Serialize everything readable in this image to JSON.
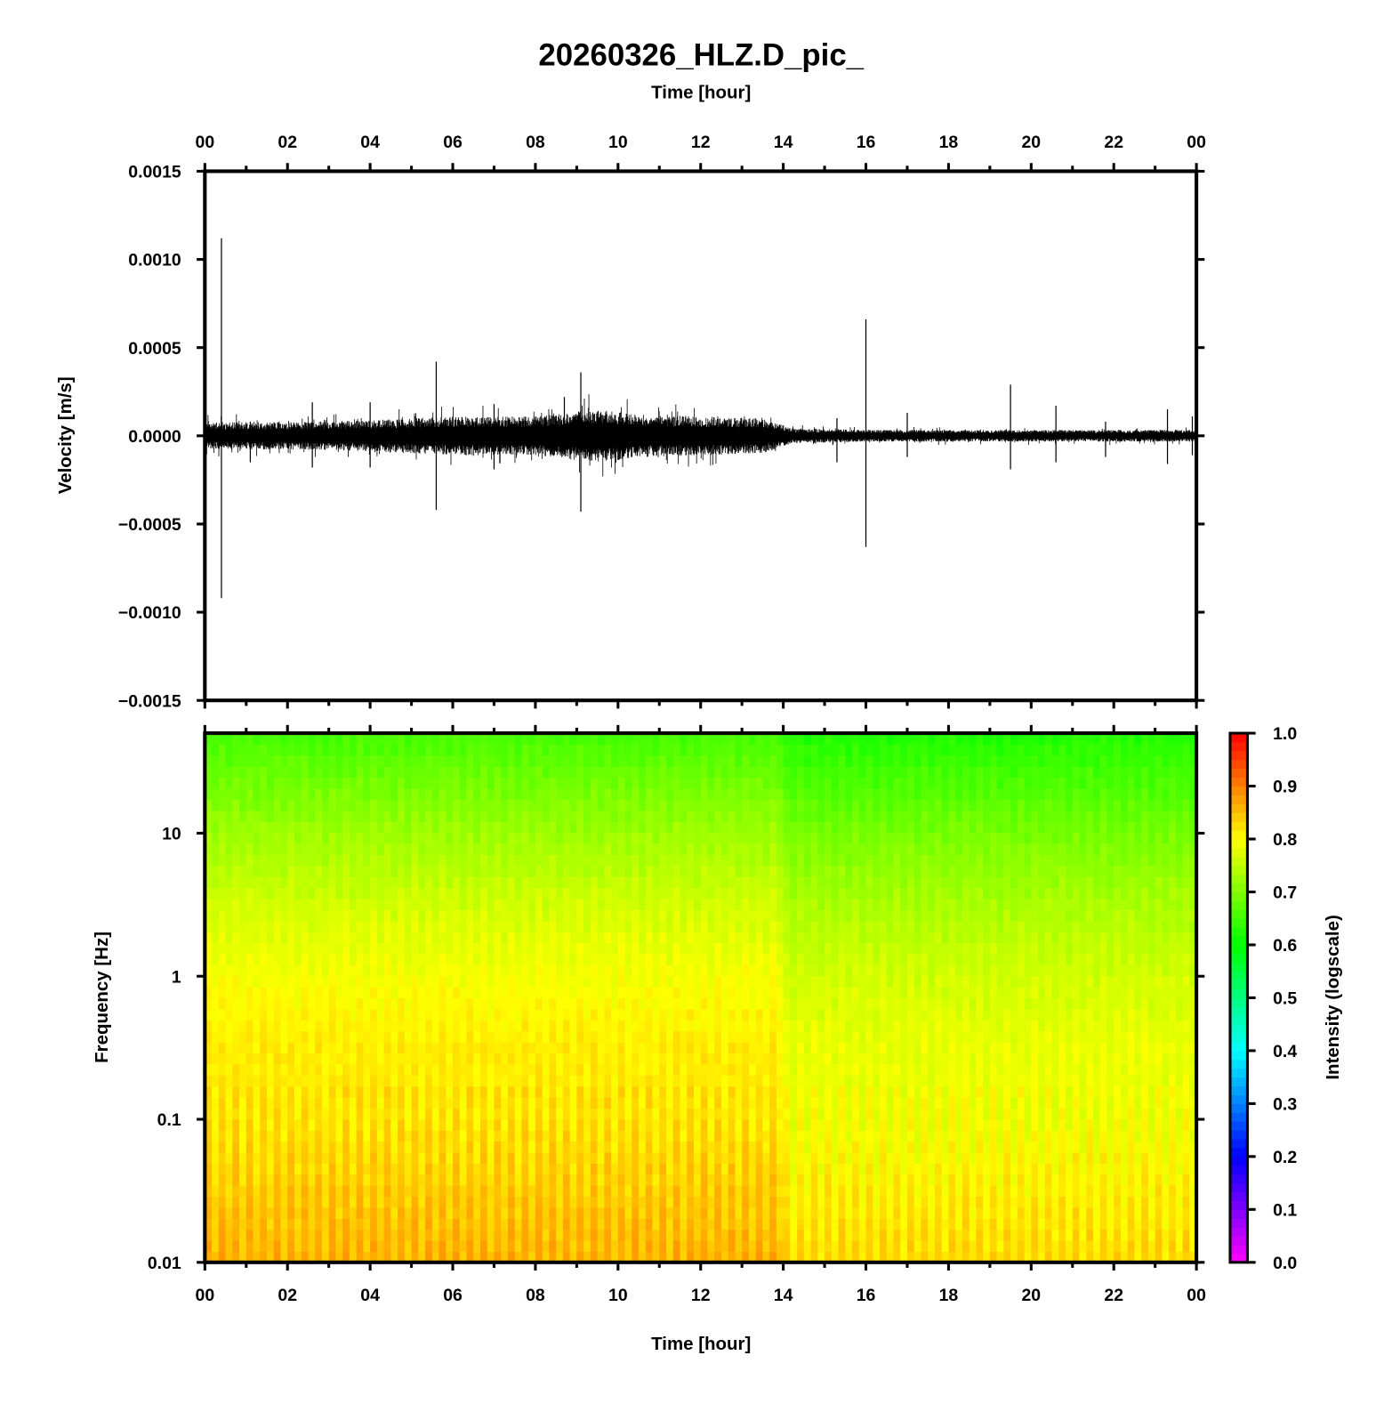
{
  "chart_data": [
    {
      "type": "line",
      "title": "20260326_HLZ.D_pic_",
      "xlabel": "Time [hour]",
      "ylabel": "Velocity [m/s]",
      "xlim": [
        0,
        24
      ],
      "ylim": [
        -0.0015,
        0.0015
      ],
      "x_tick_labels": [
        "00",
        "02",
        "04",
        "06",
        "08",
        "10",
        "12",
        "14",
        "16",
        "18",
        "20",
        "22",
        "00"
      ],
      "y_ticks": [
        0.0015,
        0.001,
        0.0005,
        0.0,
        -0.0005,
        -0.001,
        -0.0015
      ],
      "y_tick_labels": [
        "0.0015",
        "0.0010",
        "0.0005",
        "0.0000",
        "−0.0005",
        "−0.0010",
        "−0.0015"
      ],
      "noise_envelope": {
        "hours": [
          0,
          2,
          4,
          6,
          8,
          9.5,
          10.5,
          12,
          13.5,
          14.2,
          16,
          20,
          24
        ],
        "amplitude": [
          7e-05,
          7e-05,
          8e-05,
          0.0001,
          0.0001,
          0.00014,
          0.00011,
          0.0001,
          9e-05,
          4e-05,
          3e-05,
          3e-05,
          3e-05
        ]
      },
      "spikes": [
        {
          "hour": 0.4,
          "max": 0.00112,
          "min": -0.00092
        },
        {
          "hour": 1.1,
          "max": 8e-05,
          "min": -0.00015
        },
        {
          "hour": 2.6,
          "max": 0.00019,
          "min": -0.00018
        },
        {
          "hour": 4.0,
          "max": 0.00019,
          "min": -0.00018
        },
        {
          "hour": 5.6,
          "max": 0.00042,
          "min": -0.00042
        },
        {
          "hour": 7.0,
          "max": 0.00018,
          "min": -0.00019
        },
        {
          "hour": 8.7,
          "max": 0.00022,
          "min": -0.0001
        },
        {
          "hour": 9.1,
          "max": 0.00036,
          "min": -0.00043
        },
        {
          "hour": 15.3,
          "max": 0.0001,
          "min": -0.00015
        },
        {
          "hour": 16.0,
          "max": 0.00066,
          "min": -0.00063
        },
        {
          "hour": 17.0,
          "max": 0.00013,
          "min": -0.00012
        },
        {
          "hour": 19.5,
          "max": 0.00029,
          "min": -0.00019
        },
        {
          "hour": 20.6,
          "max": 0.00017,
          "min": -0.00015
        },
        {
          "hour": 21.8,
          "max": 8e-05,
          "min": -0.00012
        },
        {
          "hour": 23.3,
          "max": 0.00015,
          "min": -0.00016
        },
        {
          "hour": 23.9,
          "max": 0.00011,
          "min": -0.00011
        }
      ]
    },
    {
      "type": "heatmap",
      "xlabel": "Time [hour]",
      "ylabel": "Frequency [Hz]",
      "xlim": [
        0,
        24
      ],
      "ylim": [
        0.01,
        50
      ],
      "y_scale": "log",
      "x_tick_labels": [
        "00",
        "02",
        "04",
        "06",
        "08",
        "10",
        "12",
        "14",
        "16",
        "18",
        "20",
        "22",
        "00"
      ],
      "y_ticks": [
        10,
        1,
        0.1,
        0.01
      ],
      "y_tick_labels": [
        "10",
        "1",
        "0.1",
        "0.01"
      ],
      "intensity_profile": {
        "log10_freq": [
          -2,
          -1.5,
          -1,
          -0.5,
          0,
          0.5,
          1,
          1.7
        ],
        "intensity": [
          0.85,
          0.83,
          0.81,
          0.81,
          0.79,
          0.76,
          0.72,
          0.65
        ]
      },
      "late_hours_offset": {
        "from_hour": 14,
        "offset": -0.03
      },
      "colorbar": {
        "label": "Intensity (logscale)",
        "range": [
          0.0,
          1.0
        ],
        "tick_labels": [
          "1.0",
          "0.9",
          "0.8",
          "0.7",
          "0.6",
          "0.5",
          "0.4",
          "0.3",
          "0.2",
          "0.1",
          "0.0"
        ],
        "colormap": [
          "#ff00ff",
          "#8000ff",
          "#0000ff",
          "#0080ff",
          "#00ffff",
          "#00ff80",
          "#00ff00",
          "#80ff00",
          "#ffff00",
          "#ff8000",
          "#ff0000"
        ]
      }
    }
  ]
}
